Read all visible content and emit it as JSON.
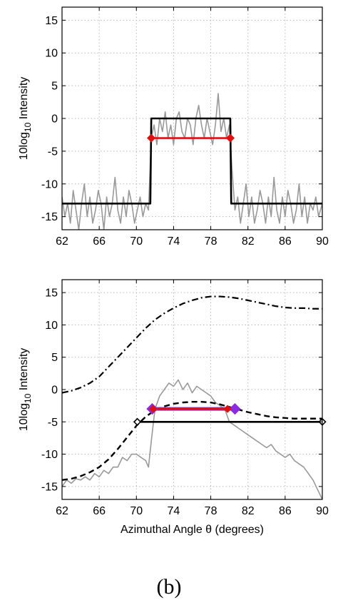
{
  "figure": {
    "panel_label": "(b)"
  },
  "chart_data": [
    {
      "type": "line",
      "xlim": [
        62,
        90
      ],
      "ylim": [
        -17,
        17
      ],
      "x_ticks": [
        62,
        66,
        70,
        74,
        78,
        82,
        86,
        90
      ],
      "y_ticks": [
        -15,
        -10,
        -5,
        0,
        5,
        10,
        15
      ],
      "ylabel_main": "10log",
      "ylabel_sub": "10",
      "ylabel_rest": " Intensity",
      "xlabel": "",
      "grid": true,
      "colors": {
        "measured": "#999999",
        "model": "#000000",
        "width": "#e01010"
      },
      "series": [
        {
          "role": "measured",
          "x": [
            62,
            62.3,
            62.6,
            62.9,
            63.2,
            63.5,
            63.8,
            64.1,
            64.4,
            64.7,
            65,
            65.3,
            65.6,
            65.9,
            66.2,
            66.5,
            66.8,
            67.1,
            67.4,
            67.7,
            68,
            68.3,
            68.6,
            68.9,
            69.2,
            69.5,
            69.8,
            70.1,
            70.4,
            70.7,
            71,
            71.3,
            71.6,
            71.9,
            72.2,
            72.5,
            72.8,
            73.1,
            73.4,
            73.7,
            74,
            74.3,
            74.6,
            74.9,
            75.2,
            75.5,
            75.8,
            76.1,
            76.4,
            76.7,
            77,
            77.3,
            77.6,
            77.9,
            78.2,
            78.5,
            78.8,
            79.1,
            79.4,
            79.7,
            80,
            80.3,
            80.6,
            80.9,
            81.2,
            81.5,
            81.8,
            82.1,
            82.4,
            82.7,
            83,
            83.3,
            83.6,
            83.9,
            84.2,
            84.5,
            84.8,
            85.1,
            85.4,
            85.7,
            86,
            86.3,
            86.6,
            86.9,
            87.2,
            87.5,
            87.8,
            88.1,
            88.4,
            88.7,
            89,
            89.3,
            89.6,
            90
          ],
          "y": [
            -12,
            -15,
            -13,
            -16,
            -11,
            -14,
            -17,
            -13,
            -10,
            -15,
            -12,
            -16,
            -14,
            -11,
            -13,
            -17,
            -12,
            -15,
            -13,
            -9,
            -14,
            -16,
            -12,
            -15,
            -11,
            -13,
            -16,
            -14,
            -12,
            -15,
            -13,
            -14,
            -3,
            -1,
            -4,
            0,
            -2,
            1,
            -3,
            -1,
            -4,
            0,
            1,
            -2,
            -3,
            0,
            -1,
            -4,
            0,
            2,
            -1,
            -3,
            0,
            -2,
            -4,
            -1,
            3.8,
            -2,
            0,
            -3,
            -1,
            -8,
            -14,
            -12,
            -16,
            -13,
            -10,
            -15,
            -12,
            -16,
            -14,
            -11,
            -13,
            -16,
            -12,
            -15,
            -9,
            -14,
            -16,
            -12,
            -15,
            -11,
            -13,
            -16,
            -14,
            -10,
            -15,
            -12,
            -16,
            -13,
            -14,
            -12,
            -15,
            -13
          ]
        },
        {
          "role": "model",
          "x": [
            62,
            71.5,
            71.6,
            80.1,
            80.2,
            90
          ],
          "y": [
            -13,
            -13,
            0,
            0,
            -13,
            -13
          ]
        },
        {
          "role": "width",
          "x": [
            71.6,
            80.1
          ],
          "y": [
            -3,
            -3
          ]
        }
      ]
    },
    {
      "type": "line",
      "xlim": [
        62,
        90
      ],
      "ylim": [
        -17,
        17
      ],
      "x_ticks": [
        62,
        66,
        70,
        74,
        78,
        82,
        86,
        90
      ],
      "y_ticks": [
        -15,
        -10,
        -5,
        0,
        5,
        10,
        15
      ],
      "ylabel_main": "10log",
      "ylabel_sub": "10",
      "ylabel_rest": " Intensity",
      "xlabel": "Azimuthal Angle θ (degrees)",
      "grid": true,
      "colors": {
        "measured": "#999999",
        "dashdot": "#000000",
        "dashed": "#000000",
        "width_black": "#000000",
        "width_red": "#e01010",
        "width_purple": "#8a2be2"
      },
      "series": [
        {
          "role": "measured",
          "x": [
            62,
            62.5,
            63,
            63.5,
            64,
            64.5,
            65,
            65.5,
            66,
            66.5,
            67,
            67.5,
            68,
            68.5,
            69,
            69.5,
            70,
            70.5,
            71,
            71.3,
            71.6,
            72,
            72.5,
            73,
            73.5,
            74,
            74.5,
            75,
            75.5,
            76,
            76.5,
            77,
            77.5,
            78,
            78.5,
            79,
            79.5,
            80,
            80.5,
            81,
            81.5,
            82,
            82.5,
            83,
            83.5,
            84,
            84.5,
            85,
            85.5,
            86,
            86.5,
            87,
            87.5,
            88,
            88.5,
            89,
            89.5,
            90
          ],
          "y": [
            -15,
            -14,
            -14.5,
            -13.8,
            -14,
            -13.5,
            -14,
            -13,
            -13.5,
            -12.5,
            -13,
            -12,
            -12,
            -10.5,
            -11,
            -10,
            -10,
            -10.5,
            -11,
            -12,
            -8,
            -3,
            -1,
            0,
            1,
            0.5,
            1.5,
            0,
            1,
            -0.5,
            0.5,
            0,
            -0.5,
            -1,
            -2,
            -2.5,
            -3,
            -5,
            -5.5,
            -6,
            -6.5,
            -7,
            -7.5,
            -8,
            -8.5,
            -9,
            -8.5,
            -9.5,
            -10,
            -10.5,
            -10,
            -11,
            -11.5,
            -12,
            -13,
            -14,
            -15.5,
            -17
          ]
        },
        {
          "role": "dashdot",
          "x": [
            62,
            63,
            64,
            65,
            66,
            67,
            68,
            69,
            70,
            71,
            72,
            73,
            74,
            75,
            76,
            77,
            78,
            79,
            80,
            81,
            82,
            83,
            84,
            85,
            86,
            87,
            88,
            89,
            90
          ],
          "y": [
            -0.5,
            -0.2,
            0.3,
            1,
            2,
            3.5,
            5,
            6.5,
            8,
            9.5,
            10.8,
            11.8,
            12.6,
            13.3,
            13.8,
            14.2,
            14.4,
            14.4,
            14.3,
            14.1,
            13.8,
            13.5,
            13.2,
            12.9,
            12.7,
            12.6,
            12.6,
            12.5,
            12.5
          ]
        },
        {
          "role": "dashed",
          "x": [
            62,
            63,
            64,
            65,
            66,
            67,
            68,
            69,
            70,
            71,
            72,
            73,
            74,
            75,
            76,
            77,
            78,
            79,
            80,
            81,
            82,
            83,
            84,
            85,
            86,
            87,
            88,
            89,
            90
          ],
          "y": [
            -14,
            -13.8,
            -13.4,
            -12.8,
            -12,
            -10.8,
            -9.2,
            -7.4,
            -5.6,
            -4.2,
            -3.2,
            -2.6,
            -2.2,
            -2,
            -1.9,
            -1.9,
            -2,
            -2.3,
            -2.7,
            -3.1,
            -3.5,
            -3.8,
            -4.1,
            -4.3,
            -4.4,
            -4.5,
            -4.5,
            -4.5,
            -4.5
          ]
        },
        {
          "role": "width_black",
          "x": [
            70.1,
            90
          ],
          "y": [
            -5,
            -5
          ]
        },
        {
          "role": "width_purple",
          "x": [
            71.7,
            80.6
          ],
          "y": [
            -3,
            -3
          ]
        },
        {
          "role": "width_red",
          "x": [
            71.8,
            79.8
          ],
          "y": [
            -3,
            -3
          ]
        }
      ]
    }
  ]
}
